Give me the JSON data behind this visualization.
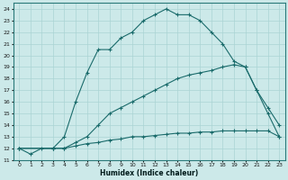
{
  "xlabel": "Humidex (Indice chaleur)",
  "bg_color": "#cce9e9",
  "grid_color": "#aad4d4",
  "line_color": "#1a6b6b",
  "xlim": [
    -0.5,
    23.5
  ],
  "ylim": [
    11,
    24.5
  ],
  "xticks": [
    0,
    1,
    2,
    3,
    4,
    5,
    6,
    7,
    8,
    9,
    10,
    11,
    12,
    13,
    14,
    15,
    16,
    17,
    18,
    19,
    20,
    21,
    22,
    23
  ],
  "yticks": [
    11,
    12,
    13,
    14,
    15,
    16,
    17,
    18,
    19,
    20,
    21,
    22,
    23,
    24
  ],
  "curve1_x": [
    0,
    1,
    2,
    3,
    4,
    5,
    6,
    7,
    8,
    9,
    10,
    11,
    12,
    13,
    14,
    15,
    16,
    17,
    18,
    19,
    20,
    21,
    22,
    23
  ],
  "curve1_y": [
    12,
    11.5,
    12,
    12,
    13,
    16,
    18.5,
    20.5,
    20.5,
    21.5,
    22,
    23,
    23.5,
    24,
    23.5,
    23.5,
    23,
    22,
    21,
    19.5,
    19,
    17,
    15.5,
    14
  ],
  "curve2_x": [
    0,
    3,
    4,
    5,
    6,
    7,
    8,
    9,
    10,
    11,
    12,
    13,
    14,
    15,
    16,
    17,
    18,
    19,
    20,
    21,
    22,
    23
  ],
  "curve2_y": [
    12,
    12,
    12,
    12.5,
    13,
    14,
    15,
    15.5,
    16,
    16.5,
    17,
    17.5,
    18,
    18.3,
    18.5,
    18.7,
    19,
    19.2,
    19,
    17,
    15,
    13
  ],
  "curve3_x": [
    0,
    3,
    4,
    5,
    6,
    7,
    8,
    9,
    10,
    11,
    12,
    13,
    14,
    15,
    16,
    17,
    18,
    19,
    20,
    21,
    22,
    23
  ],
  "curve3_y": [
    12,
    12,
    12,
    12.2,
    12.4,
    12.5,
    12.7,
    12.8,
    13,
    13,
    13.1,
    13.2,
    13.3,
    13.3,
    13.4,
    13.4,
    13.5,
    13.5,
    13.5,
    13.5,
    13.5,
    13
  ]
}
